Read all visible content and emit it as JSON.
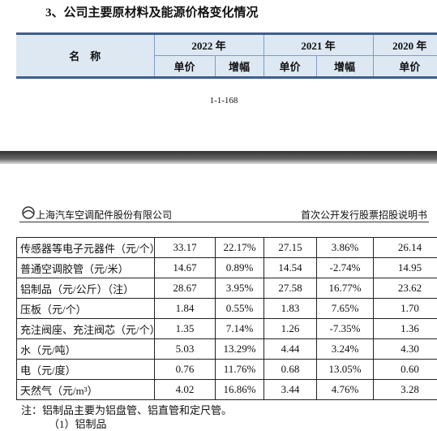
{
  "heading": "3、公司主要原材料及能源价格变化情况",
  "table_header": {
    "name": "名　称",
    "years": [
      "2022 年",
      "2021 年",
      "2020 年"
    ],
    "sub": [
      "单价",
      "增幅",
      "单价",
      "增幅",
      "单价"
    ]
  },
  "page_number": "1-1-168",
  "page_header": {
    "company": "上海汽车空调配件股份有限公司",
    "doc": "首次公开发行股票招股说明书"
  },
  "table": {
    "rows": [
      [
        "传感器等电子元器件（元/个）",
        "33.17",
        "22.17%",
        "27.15",
        "3.86%",
        "26.14"
      ],
      [
        "普通空调胶管（元/米）",
        "14.67",
        "0.89%",
        "14.54",
        "-2.74%",
        "14.95"
      ],
      [
        "铝制品（元/公斤）（注）",
        "28.67",
        "3.95%",
        "27.58",
        "16.77%",
        "23.62"
      ],
      [
        "压板（元/个）",
        "1.84",
        "0.55%",
        "1.83",
        "7.65%",
        "1.70"
      ],
      [
        "充注阀座、充注阀芯（元/个）",
        "1.35",
        "7.14%",
        "1.26",
        "-7.35%",
        "1.36"
      ],
      [
        "水（元/吨）",
        "5.03",
        "13.29%",
        "4.44",
        "3.24%",
        "4.30"
      ],
      [
        "电（元/度）",
        "0.76",
        "11.76%",
        "0.68",
        "13.05%",
        "0.60"
      ],
      [
        "天然气（元/m³）",
        "4.02",
        "16.86%",
        "3.44",
        "4.76%",
        "3.28"
      ]
    ]
  },
  "note": "注：铝制品主要为铝盘管、铝直管和定尺管。",
  "subheading": "（1）铝制品"
}
